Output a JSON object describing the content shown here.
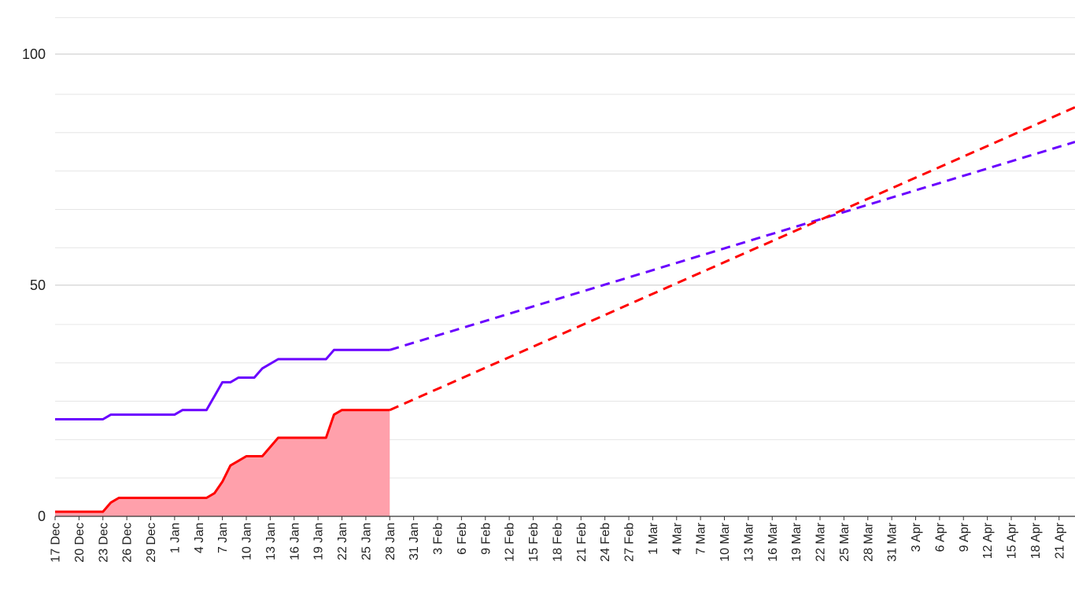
{
  "chart_data": {
    "type": "line",
    "title": "",
    "xlabel": "",
    "ylabel": "",
    "ylim": [
      0,
      110
    ],
    "xlim": [
      "2023-12-17",
      "2024-04-23"
    ],
    "yticks": [
      0,
      50,
      100
    ],
    "minor_grid_step": 8.3,
    "x_tick_labels": [
      "17 Dec",
      "20 Dec",
      "23 Dec",
      "26 Dec",
      "29 Dec",
      "1 Jan",
      "4 Jan",
      "7 Jan",
      "10 Jan",
      "13 Jan",
      "16 Jan",
      "19 Jan",
      "22 Jan",
      "25 Jan",
      "28 Jan",
      "31 Jan",
      "3 Feb",
      "6 Feb",
      "9 Feb",
      "12 Feb",
      "15 Feb",
      "18 Feb",
      "21 Feb",
      "24 Feb",
      "27 Feb",
      "1 Mar",
      "4 Mar",
      "7 Mar",
      "10 Mar",
      "13 Mar",
      "16 Mar",
      "19 Mar",
      "22 Mar",
      "25 Mar",
      "28 Mar",
      "31 Mar",
      "3 Apr",
      "6 Apr",
      "9 Apr",
      "12 Apr",
      "15 Apr",
      "18 Apr",
      "21 Apr"
    ],
    "grid": true,
    "legend": "none",
    "series": [
      {
        "color": "#6a00ff",
        "style": "solid",
        "fill": false,
        "points": [
          [
            "2023-12-17",
            21
          ],
          [
            "2023-12-23",
            21
          ],
          [
            "2023-12-24",
            22
          ],
          [
            "2023-12-31",
            22
          ],
          [
            "2024-01-01",
            22
          ],
          [
            "2024-01-02",
            23
          ],
          [
            "2024-01-05",
            23
          ],
          [
            "2024-01-06",
            26
          ],
          [
            "2024-01-07",
            29
          ],
          [
            "2024-01-08",
            29
          ],
          [
            "2024-01-09",
            30
          ],
          [
            "2024-01-11",
            30
          ],
          [
            "2024-01-12",
            32
          ],
          [
            "2024-01-14",
            34
          ],
          [
            "2024-01-20",
            34
          ],
          [
            "2024-01-21",
            36
          ],
          [
            "2024-01-28",
            36
          ]
        ]
      },
      {
        "color": "#ff0000",
        "style": "solid",
        "fill": true,
        "fill_color": "#ffa0ab",
        "points": [
          [
            "2023-12-17",
            1
          ],
          [
            "2023-12-23",
            1
          ],
          [
            "2023-12-24",
            3
          ],
          [
            "2023-12-25",
            4
          ],
          [
            "2024-01-05",
            4
          ],
          [
            "2024-01-06",
            5
          ],
          [
            "2024-01-07",
            7.5
          ],
          [
            "2024-01-08",
            11
          ],
          [
            "2024-01-09",
            12
          ],
          [
            "2024-01-10",
            13
          ],
          [
            "2024-01-12",
            13
          ],
          [
            "2024-01-14",
            17
          ],
          [
            "2024-01-20",
            17
          ],
          [
            "2024-01-21",
            22
          ],
          [
            "2024-01-22",
            23
          ],
          [
            "2024-01-28",
            23
          ]
        ]
      },
      {
        "color": "#6a00ff",
        "style": "dashed",
        "fill": false,
        "points": [
          [
            "2024-01-28",
            36
          ],
          [
            "2024-04-23",
            81
          ]
        ]
      },
      {
        "color": "#ff0000",
        "style": "dashed",
        "fill": false,
        "points": [
          [
            "2024-01-28",
            23
          ],
          [
            "2024-04-23",
            88.5
          ]
        ]
      }
    ]
  }
}
